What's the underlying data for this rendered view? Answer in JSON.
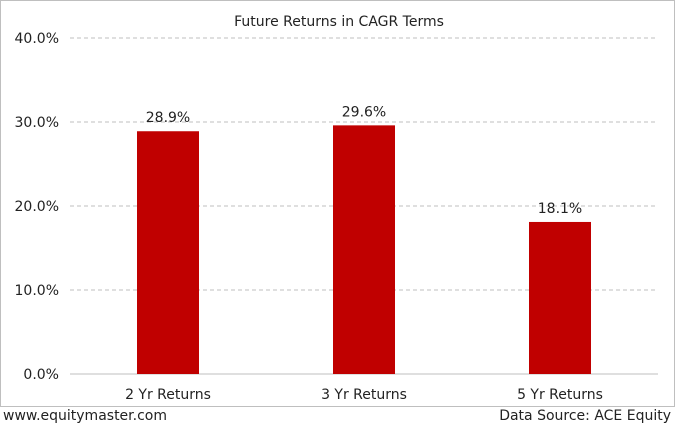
{
  "chart_data": {
    "type": "bar",
    "title": "Future Returns in CAGR Terms",
    "xlabel": "",
    "ylabel": "",
    "categories": [
      "2 Yr Returns",
      "3 Yr Returns",
      "5 Yr Returns"
    ],
    "values": [
      28.9,
      29.6,
      18.1
    ],
    "data_labels": [
      "28.9%",
      "29.6%",
      "18.1%"
    ],
    "ylim": [
      0,
      40
    ],
    "yticks": [
      0,
      10,
      20,
      30,
      40
    ],
    "ytick_labels": [
      "0.0%",
      "10.0%",
      "20.0%",
      "30.0%",
      "40.0%"
    ],
    "grid": true,
    "legend": "none",
    "bar_color": "#c00000"
  },
  "footer": {
    "website": "www.equitymaster.com",
    "source": "Data Source: ACE Equity"
  }
}
